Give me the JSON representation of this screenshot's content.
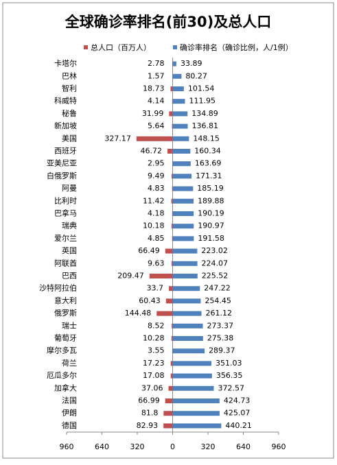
{
  "chart_data": {
    "type": "butterfly",
    "title": "全球确诊率排名(前30)及总人口",
    "categories": [
      "卡塔尔",
      "巴林",
      "智利",
      "科威特",
      "秘鲁",
      "新加坡",
      "美国",
      "西班牙",
      "亚美尼亚",
      "白俄罗斯",
      "阿曼",
      "比利时",
      "巴拿马",
      "瑞典",
      "爱尔兰",
      "英国",
      "阿联酋",
      "巴西",
      "沙特阿拉伯",
      "意大利",
      "俄罗斯",
      "瑞士",
      "葡萄牙",
      "摩尔多瓦",
      "荷兰",
      "厄瓜多尔",
      "加拿大",
      "法国",
      "伊朗",
      "德国"
    ],
    "series": [
      {
        "name": "总人口（百万人）",
        "color": "#c0504d",
        "values": [
          2.78,
          1.57,
          18.73,
          4.14,
          31.99,
          5.64,
          327.17,
          46.72,
          2.95,
          9.49,
          4.83,
          11.42,
          4.18,
          10.18,
          4.85,
          66.49,
          9.63,
          209.47,
          33.7,
          60.43,
          144.48,
          8.52,
          10.28,
          3.55,
          17.23,
          17.08,
          37.06,
          66.99,
          81.8,
          82.93
        ]
      },
      {
        "name": "确诊率排名（确诊比例，人/1例）",
        "color": "#4f81bd",
        "values": [
          33.89,
          80.27,
          101.54,
          111.95,
          134.89,
          136.81,
          148.15,
          160.34,
          163.69,
          171.31,
          185.19,
          189.88,
          190.19,
          190.97,
          191.58,
          223.02,
          224.07,
          225.52,
          247.22,
          254.45,
          261.12,
          273.37,
          275.38,
          289.37,
          351.03,
          356.35,
          372.57,
          424.73,
          425.07,
          440.21
        ]
      }
    ],
    "xlim": [
      -960,
      960
    ],
    "xticks": [
      {
        "value": -960,
        "label": "960"
      },
      {
        "value": -640,
        "label": "640"
      },
      {
        "value": -320,
        "label": "320"
      },
      0,
      320,
      640,
      960
    ]
  }
}
